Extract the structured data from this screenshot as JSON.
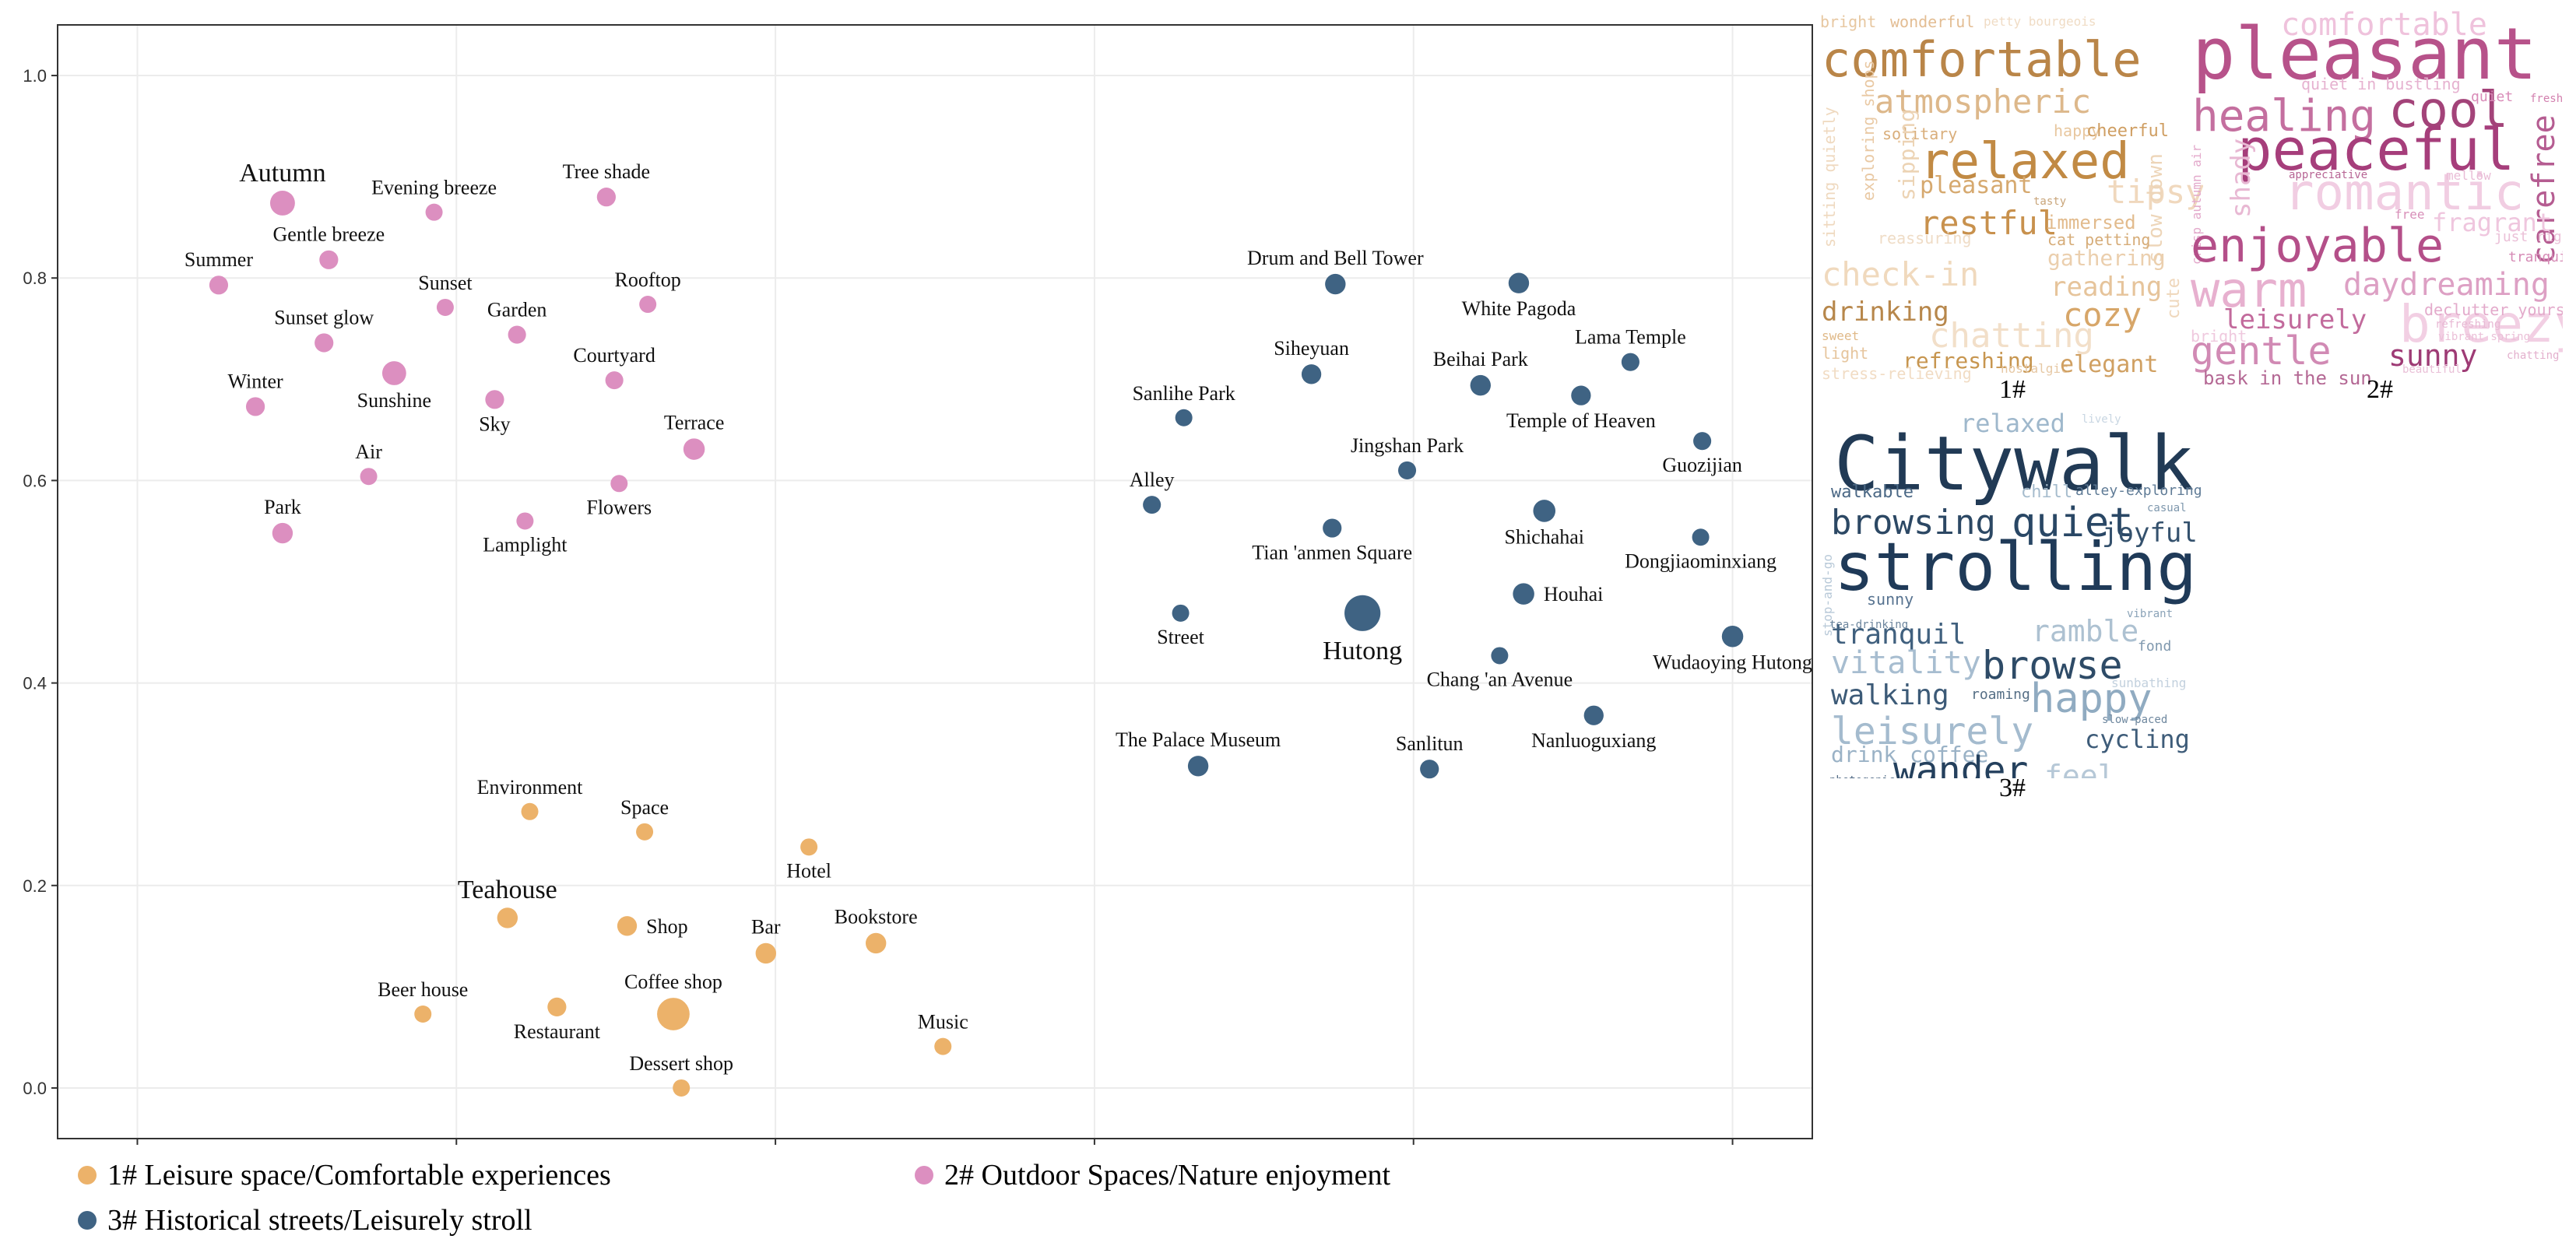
{
  "colors": {
    "leisure": "#ecb26a",
    "outdoor": "#dc8fc0",
    "historical": "#3f6383",
    "grid": "#ececec",
    "axis": "#333333"
  },
  "chart_data": {
    "type": "scatter",
    "title": "",
    "xlabel": "",
    "ylabel": "",
    "xlim": [
      -0.05,
      1.05
    ],
    "ylim": [
      -0.05,
      1.05
    ],
    "xticks": [
      0.0,
      0.2,
      0.4,
      0.6,
      0.8,
      1.0
    ],
    "yticks": [
      0.0,
      0.2,
      0.4,
      0.6,
      0.8,
      1.0
    ],
    "xtick_labels": [
      "0.0",
      "0.2",
      "0.4",
      "0.6",
      "0.8",
      "1.0"
    ],
    "ytick_labels": [
      "0.0",
      "0.2",
      "0.4",
      "0.6",
      "0.8",
      "1.0"
    ],
    "grid": true,
    "legend": [
      {
        "name": "1# Leisure space/Comfortable experiences",
        "color_key": "leisure"
      },
      {
        "name": "2# Outdoor Spaces/Nature enjoyment",
        "color_key": "outdoor"
      },
      {
        "name": "3# Historical streets/Leisurely stroll",
        "color_key": "historical"
      }
    ],
    "series": [
      {
        "name": "1# Leisure space/Comfortable experiences",
        "color_key": "leisure",
        "points": [
          {
            "label": "Environment",
            "x": 0.246,
            "y": 0.273,
            "size": 1,
            "label_pos": "above"
          },
          {
            "label": "Space",
            "x": 0.318,
            "y": 0.253,
            "size": 1,
            "label_pos": "above"
          },
          {
            "label": "Hotel",
            "x": 0.421,
            "y": 0.238,
            "size": 1,
            "label_pos": "below"
          },
          {
            "label": "Teahouse",
            "x": 0.232,
            "y": 0.168,
            "size": 1.2,
            "label_pos": "above",
            "big": true
          },
          {
            "label": "Shop",
            "x": 0.307,
            "y": 0.16,
            "size": 1.15,
            "label_pos": "right"
          },
          {
            "label": "Bar",
            "x": 0.394,
            "y": 0.133,
            "size": 1.2,
            "label_pos": "above"
          },
          {
            "label": "Bookstore",
            "x": 0.463,
            "y": 0.143,
            "size": 1.2,
            "label_pos": "above"
          },
          {
            "label": "Beer house",
            "x": 0.179,
            "y": 0.073,
            "size": 1,
            "label_pos": "above"
          },
          {
            "label": "Restaurant",
            "x": 0.263,
            "y": 0.08,
            "size": 1.1,
            "label_pos": "below"
          },
          {
            "label": "Coffee shop",
            "x": 0.336,
            "y": 0.073,
            "size": 1.9,
            "label_pos": "above"
          },
          {
            "label": "Music",
            "x": 0.505,
            "y": 0.041,
            "size": 1,
            "label_pos": "above"
          },
          {
            "label": "Dessert shop",
            "x": 0.341,
            "y": 0.0,
            "size": 1,
            "label_pos": "above"
          }
        ]
      },
      {
        "name": "2# Outdoor Spaces/Nature enjoyment",
        "color_key": "outdoor",
        "points": [
          {
            "label": "Autumn",
            "x": 0.091,
            "y": 0.874,
            "size": 1.45,
            "label_pos": "above",
            "big": true
          },
          {
            "label": "Evening breeze",
            "x": 0.186,
            "y": 0.865,
            "size": 1,
            "label_pos": "above"
          },
          {
            "label": "Tree shade",
            "x": 0.294,
            "y": 0.88,
            "size": 1.1,
            "label_pos": "above"
          },
          {
            "label": "Gentle breeze",
            "x": 0.12,
            "y": 0.818,
            "size": 1.1,
            "label_pos": "above"
          },
          {
            "label": "Summer",
            "x": 0.051,
            "y": 0.793,
            "size": 1.1,
            "label_pos": "above"
          },
          {
            "label": "Sunset",
            "x": 0.193,
            "y": 0.771,
            "size": 1,
            "label_pos": "above"
          },
          {
            "label": "Rooftop",
            "x": 0.32,
            "y": 0.774,
            "size": 1,
            "label_pos": "above"
          },
          {
            "label": "Sunset glow",
            "x": 0.117,
            "y": 0.736,
            "size": 1.1,
            "label_pos": "above"
          },
          {
            "label": "Garden",
            "x": 0.238,
            "y": 0.744,
            "size": 1.05,
            "label_pos": "above"
          },
          {
            "label": "Courtyard",
            "x": 0.299,
            "y": 0.699,
            "size": 1.05,
            "label_pos": "above"
          },
          {
            "label": "Winter",
            "x": 0.074,
            "y": 0.673,
            "size": 1.1,
            "label_pos": "above"
          },
          {
            "label": "Sunshine",
            "x": 0.161,
            "y": 0.706,
            "size": 1.4,
            "label_pos": "below"
          },
          {
            "label": "Sky",
            "x": 0.224,
            "y": 0.68,
            "size": 1.1,
            "label_pos": "below"
          },
          {
            "label": "Terrace",
            "x": 0.349,
            "y": 0.631,
            "size": 1.25,
            "label_pos": "above"
          },
          {
            "label": "Air",
            "x": 0.145,
            "y": 0.604,
            "size": 1,
            "label_pos": "above"
          },
          {
            "label": "Flowers",
            "x": 0.302,
            "y": 0.597,
            "size": 1,
            "label_pos": "below"
          },
          {
            "label": "Park",
            "x": 0.091,
            "y": 0.548,
            "size": 1.2,
            "label_pos": "above"
          },
          {
            "label": "Lamplight",
            "x": 0.243,
            "y": 0.56,
            "size": 1,
            "label_pos": "below"
          }
        ]
      },
      {
        "name": "3# Historical streets/Leisurely stroll",
        "color_key": "historical",
        "points": [
          {
            "label": "Drum and Bell Tower",
            "x": 0.751,
            "y": 0.794,
            "size": 1.2,
            "label_pos": "above"
          },
          {
            "label": "White Pagoda",
            "x": 0.866,
            "y": 0.795,
            "size": 1.2,
            "label_pos": "below"
          },
          {
            "label": "Siheyuan",
            "x": 0.736,
            "y": 0.705,
            "size": 1.15,
            "label_pos": "above"
          },
          {
            "label": "Lama Temple",
            "x": 0.936,
            "y": 0.717,
            "size": 1.05,
            "label_pos": "above"
          },
          {
            "label": "Beihai Park",
            "x": 0.842,
            "y": 0.694,
            "size": 1.2,
            "label_pos": "above"
          },
          {
            "label": "Temple of Heaven",
            "x": 0.905,
            "y": 0.684,
            "size": 1.15,
            "label_pos": "below"
          },
          {
            "label": "Sanlihe Park",
            "x": 0.656,
            "y": 0.662,
            "size": 1,
            "label_pos": "above"
          },
          {
            "label": "Guozijian",
            "x": 0.981,
            "y": 0.639,
            "size": 1.05,
            "label_pos": "below"
          },
          {
            "label": "Jingshan Park",
            "x": 0.796,
            "y": 0.61,
            "size": 1.05,
            "label_pos": "above"
          },
          {
            "label": "Alley",
            "x": 0.636,
            "y": 0.576,
            "size": 1.05,
            "label_pos": "above"
          },
          {
            "label": "Shichahai",
            "x": 0.882,
            "y": 0.57,
            "size": 1.3,
            "label_pos": "below"
          },
          {
            "label": "Dongjiaominxiang",
            "x": 0.98,
            "y": 0.544,
            "size": 1,
            "label_pos": "below"
          },
          {
            "label": "Tian 'anmen Square",
            "x": 0.749,
            "y": 0.553,
            "size": 1.1,
            "label_pos": "below"
          },
          {
            "label": "Houhai",
            "x": 0.869,
            "y": 0.488,
            "size": 1.25,
            "label_pos": "right"
          },
          {
            "label": "Street",
            "x": 0.654,
            "y": 0.469,
            "size": 1,
            "label_pos": "below"
          },
          {
            "label": "Hutong",
            "x": 0.768,
            "y": 0.469,
            "size": 2.1,
            "label_pos": "below",
            "big": true
          },
          {
            "label": "Chang 'an Avenue",
            "x": 0.854,
            "y": 0.427,
            "size": 1,
            "label_pos": "below"
          },
          {
            "label": "Wudaoying Hutong",
            "x": 1.0,
            "y": 0.446,
            "size": 1.25,
            "label_pos": "below"
          },
          {
            "label": "Nanluoguxiang",
            "x": 0.913,
            "y": 0.368,
            "size": 1.15,
            "label_pos": "below"
          },
          {
            "label": "The Palace Museum",
            "x": 0.665,
            "y": 0.318,
            "size": 1.2,
            "label_pos": "above"
          },
          {
            "label": "Sanlitun",
            "x": 0.81,
            "y": 0.315,
            "size": 1.1,
            "label_pos": "above"
          }
        ]
      }
    ]
  },
  "wordclouds": [
    {
      "caption": "1#",
      "words": [
        {
          "text": "bright",
          "c": "#e7c7a0"
        },
        {
          "text": "wonderful",
          "c": "#e3bd93"
        },
        {
          "text": "petty bourgeois",
          "c": "#f0dcc5"
        },
        {
          "text": "comfortable",
          "c": "#b98548"
        },
        {
          "text": "atmospheric",
          "c": "#ddb88b"
        },
        {
          "text": "sitting quietly",
          "c": "#efd9bf"
        },
        {
          "text": "exploring shops",
          "c": "#e9c9a4"
        },
        {
          "text": "solitary",
          "c": "#d9ae7b"
        },
        {
          "text": "happy",
          "c": "#e8c79f"
        },
        {
          "text": "cheerful",
          "c": "#cf9e62"
        },
        {
          "text": "relaxed",
          "c": "#c18a44"
        },
        {
          "text": "sipping",
          "c": "#ecd3b4"
        },
        {
          "text": "pleasant",
          "c": "#d6a96f"
        },
        {
          "text": "tasty",
          "c": "#c9a57a"
        },
        {
          "text": "tipsy",
          "c": "#f0d8bd"
        },
        {
          "text": "restful",
          "c": "#c8914d"
        },
        {
          "text": "immersed",
          "c": "#e2bb8d"
        },
        {
          "text": "slow down",
          "c": "#edd5b8"
        },
        {
          "text": "cat petting",
          "c": "#d6ac78"
        },
        {
          "text": "reassuring",
          "c": "#efdcc6"
        },
        {
          "text": "check-in",
          "c": "#f0d9bd"
        },
        {
          "text": "gathering",
          "c": "#ebcfae"
        },
        {
          "text": "reading",
          "c": "#e6c49b"
        },
        {
          "text": "drinking",
          "c": "#b7874b"
        },
        {
          "text": "cozy",
          "c": "#d7a669"
        },
        {
          "text": "chatting",
          "c": "#f2dfc9"
        },
        {
          "text": "cute",
          "c": "#efd7bb"
        },
        {
          "text": "sweet",
          "c": "#e0b988"
        },
        {
          "text": "light",
          "c": "#e6c59d"
        },
        {
          "text": "refreshing",
          "c": "#c79650"
        },
        {
          "text": "stress-relieving",
          "c": "#f1dcc4"
        },
        {
          "text": "nostalgic",
          "c": "#e6c8a4"
        },
        {
          "text": "elegant",
          "c": "#d0a062"
        }
      ]
    },
    {
      "caption": "2#",
      "words": [
        {
          "text": "pleasant",
          "c": "#b7528a"
        },
        {
          "text": "comfortable",
          "c": "#efc2dc"
        },
        {
          "text": "quiet in bustling",
          "c": "#e6b2d0"
        },
        {
          "text": "healing",
          "c": "#c46f9f"
        },
        {
          "text": "cool",
          "c": "#a34379"
        },
        {
          "text": "quiet",
          "c": "#d98bb8"
        },
        {
          "text": "fresh",
          "c": "#d27fae"
        },
        {
          "text": "carefree",
          "c": "#b55c91"
        },
        {
          "text": "crisp autumn air",
          "c": "#e3a9cb"
        },
        {
          "text": "peaceful",
          "c": "#a63e7b"
        },
        {
          "text": "romantic",
          "c": "#f1cde2"
        },
        {
          "text": "shady",
          "c": "#e8b8d3"
        },
        {
          "text": "appreciative",
          "c": "#b76594"
        },
        {
          "text": "mellow",
          "c": "#e9bcd6"
        },
        {
          "text": "free",
          "c": "#d88fb9"
        },
        {
          "text": "fragrant",
          "c": "#efc6de"
        },
        {
          "text": "just right",
          "c": "#ebc1d8"
        },
        {
          "text": "enjoyable",
          "c": "#b44f89"
        },
        {
          "text": "tranquil",
          "c": "#d68bb6"
        },
        {
          "text": "breezy",
          "c": "#f2cfe3"
        },
        {
          "text": "warm",
          "c": "#e7b0cf"
        },
        {
          "text": "daydreaming",
          "c": "#dda0c4"
        },
        {
          "text": "leisurely",
          "c": "#c26a9c"
        },
        {
          "text": "declutter yourself",
          "c": "#e3aacb"
        },
        {
          "text": "refreshing",
          "c": "#e8b9d4"
        },
        {
          "text": "vibrant spring",
          "c": "#ebc0d8"
        },
        {
          "text": "bright",
          "c": "#efc9de"
        },
        {
          "text": "gentle",
          "c": "#d18ab4"
        },
        {
          "text": "sunny",
          "c": "#9e3b75"
        },
        {
          "text": "chatting",
          "c": "#e3b0cd"
        },
        {
          "text": "bask in the sun",
          "c": "#b46894"
        },
        {
          "text": "beautiful",
          "c": "#e9bfd7"
        }
      ]
    },
    {
      "caption": "3#",
      "words": [
        {
          "text": "relaxed",
          "c": "#9fb8cc"
        },
        {
          "text": "lively",
          "c": "#c8d6e2"
        },
        {
          "text": "Citywalk",
          "c": "#213a55"
        },
        {
          "text": "walkable",
          "c": "#4b6885"
        },
        {
          "text": "chill",
          "c": "#a6bccd"
        },
        {
          "text": "alley-exploring",
          "c": "#5f7b96"
        },
        {
          "text": "browsing",
          "c": "#2c4864"
        },
        {
          "text": "quiet",
          "c": "#294765"
        },
        {
          "text": "casual",
          "c": "#7e97ad"
        },
        {
          "text": "stop-and-go",
          "c": "#b8c9d8"
        },
        {
          "text": "joyful",
          "c": "#34516d"
        },
        {
          "text": "strolling",
          "c": "#1f3a58"
        },
        {
          "text": "sunny",
          "c": "#577390"
        },
        {
          "text": "tea-drinking",
          "c": "#6c859d"
        },
        {
          "text": "vibrant",
          "c": "#8ba3b8"
        },
        {
          "text": "tranquil",
          "c": "#40607e"
        },
        {
          "text": "ramble",
          "c": "#adc1d1"
        },
        {
          "text": "fond",
          "c": "#7f98ae"
        },
        {
          "text": "vitality",
          "c": "#a7bdd0"
        },
        {
          "text": "browse",
          "c": "#2e4b67"
        },
        {
          "text": "walking",
          "c": "#3c5a77"
        },
        {
          "text": "roaming",
          "c": "#566f86"
        },
        {
          "text": "sunbathing",
          "c": "#c3d1de"
        },
        {
          "text": "happy",
          "c": "#90abc1"
        },
        {
          "text": "leisurely",
          "c": "#a4bbce"
        },
        {
          "text": "slow-paced",
          "c": "#6e879e"
        },
        {
          "text": "cycling",
          "c": "#3e5c79"
        },
        {
          "text": "drink coffee",
          "c": "#9ab2c6"
        },
        {
          "text": "wander",
          "c": "#24405d"
        },
        {
          "text": "photogenic",
          "c": "#4f6984"
        },
        {
          "text": "feel",
          "c": "#b6c8d7"
        },
        {
          "text": "shuttling",
          "c": "#98afc3"
        },
        {
          "text": "beautiful",
          "c": "#8ea6bc"
        },
        {
          "text": "hustle and bustle",
          "c": "#7891a8"
        }
      ]
    }
  ]
}
